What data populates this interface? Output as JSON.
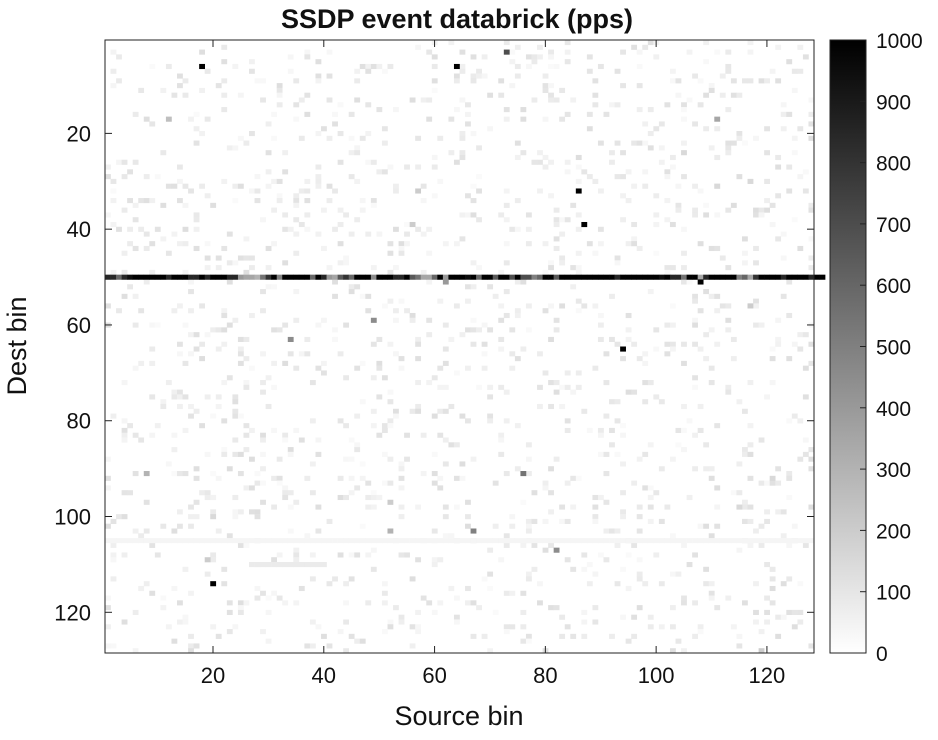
{
  "chart_data": {
    "type": "heatmap",
    "title": "SSDP event databrick (pps)",
    "xlabel": "Source bin",
    "ylabel": "Dest bin",
    "x_range": [
      1,
      128
    ],
    "y_range": [
      1,
      128
    ],
    "y_axis_direction": "top-to-bottom",
    "x_ticks": [
      20,
      40,
      60,
      80,
      100,
      120
    ],
    "y_ticks": [
      20,
      40,
      60,
      80,
      100,
      120
    ],
    "colorbar": {
      "range": [
        0,
        1000
      ],
      "ticks": [
        0,
        100,
        200,
        300,
        400,
        500,
        600,
        700,
        800,
        900,
        1000
      ],
      "colormap": "white-to-black (inverted gray)",
      "placement": "right"
    },
    "grid": false,
    "noise_level_approx": "background cells mostly 0, scattered cells 20-120",
    "cells": [
      {
        "x": 18,
        "y": 6,
        "v": 1000
      },
      {
        "x": 64,
        "y": 6,
        "v": 1000
      },
      {
        "x": 73,
        "y": 3,
        "v": 700
      },
      {
        "x": 22,
        "y": 5,
        "v": 120
      },
      {
        "x": 12,
        "y": 17,
        "v": 250
      },
      {
        "x": 111,
        "y": 17,
        "v": 350
      },
      {
        "x": 105,
        "y": 24,
        "v": 150
      },
      {
        "x": 78,
        "y": 26,
        "v": 100
      },
      {
        "x": 86,
        "y": 32,
        "v": 1000
      },
      {
        "x": 87,
        "y": 39,
        "v": 1000
      },
      {
        "x": 57,
        "y": 32,
        "v": 200
      },
      {
        "x": 56,
        "y": 39,
        "v": 200
      },
      {
        "x": 117,
        "y": 30,
        "v": 150
      },
      {
        "x": 111,
        "y": 31,
        "v": 150
      },
      {
        "x": 62,
        "y": 51,
        "v": 400
      },
      {
        "x": 108,
        "y": 51,
        "v": 1000
      },
      {
        "x": 49,
        "y": 59,
        "v": 450
      },
      {
        "x": 34,
        "y": 63,
        "v": 450
      },
      {
        "x": 94,
        "y": 65,
        "v": 1000
      },
      {
        "x": 117,
        "y": 56,
        "v": 200
      },
      {
        "x": 8,
        "y": 91,
        "v": 300
      },
      {
        "x": 76,
        "y": 91,
        "v": 550
      },
      {
        "x": 52,
        "y": 97,
        "v": 200
      },
      {
        "x": 20,
        "y": 100,
        "v": 150
      },
      {
        "x": 52,
        "y": 103,
        "v": 300
      },
      {
        "x": 67,
        "y": 103,
        "v": 500
      },
      {
        "x": 82,
        "y": 107,
        "v": 450
      },
      {
        "x": 19,
        "y": 109,
        "v": 200
      },
      {
        "x": 20,
        "y": 114,
        "v": 1000
      },
      {
        "x": 115,
        "y": 98,
        "v": 150
      },
      {
        "x": 121,
        "y": 92,
        "v": 150
      },
      {
        "x": 1,
        "y": 92,
        "v": 120
      },
      {
        "x": 96,
        "y": 121,
        "v": 120
      },
      {
        "x": 119,
        "y": 128,
        "v": 200
      }
    ],
    "band_row": {
      "y": 50,
      "values": [
        850,
        850,
        600,
        850,
        950,
        1000,
        1000,
        1000,
        1000,
        1000,
        1000,
        850,
        1000,
        1000,
        1000,
        850,
        850,
        1000,
        850,
        1000,
        1000,
        1000,
        850,
        850,
        400,
        350,
        350,
        300,
        550,
        800,
        1000,
        500,
        1000,
        1000,
        1000,
        1000,
        1000,
        600,
        1000,
        850,
        400,
        350,
        650,
        800,
        600,
        1000,
        1000,
        1000,
        450,
        1000,
        1000,
        1000,
        850,
        850,
        1000,
        650,
        550,
        350,
        350,
        600,
        1000,
        400,
        1000,
        1000,
        1000,
        950,
        1000,
        600,
        1000,
        1000,
        650,
        1000,
        1000,
        700,
        1000,
        700,
        700,
        500,
        600,
        1000,
        1000,
        650,
        1000,
        1000,
        1000,
        1000,
        1000,
        1000,
        1000,
        1000,
        1000,
        1000,
        850,
        1000,
        1000,
        1000,
        1000,
        1000,
        1000,
        1000,
        950,
        1000,
        850,
        850,
        550,
        1000,
        1000,
        350,
        850,
        1000,
        1000,
        1000,
        1000,
        1000,
        500,
        600,
        350,
        800,
        1000,
        1000,
        1000,
        1000,
        850,
        1000,
        1000,
        1000,
        1000,
        850,
        1000,
        1000
      ]
    },
    "faint_rows": [
      {
        "y": 105,
        "x_from": 1,
        "x_to": 128,
        "v": 40
      },
      {
        "y": 110,
        "x_from": 27,
        "x_to": 40,
        "v": 80
      }
    ]
  }
}
